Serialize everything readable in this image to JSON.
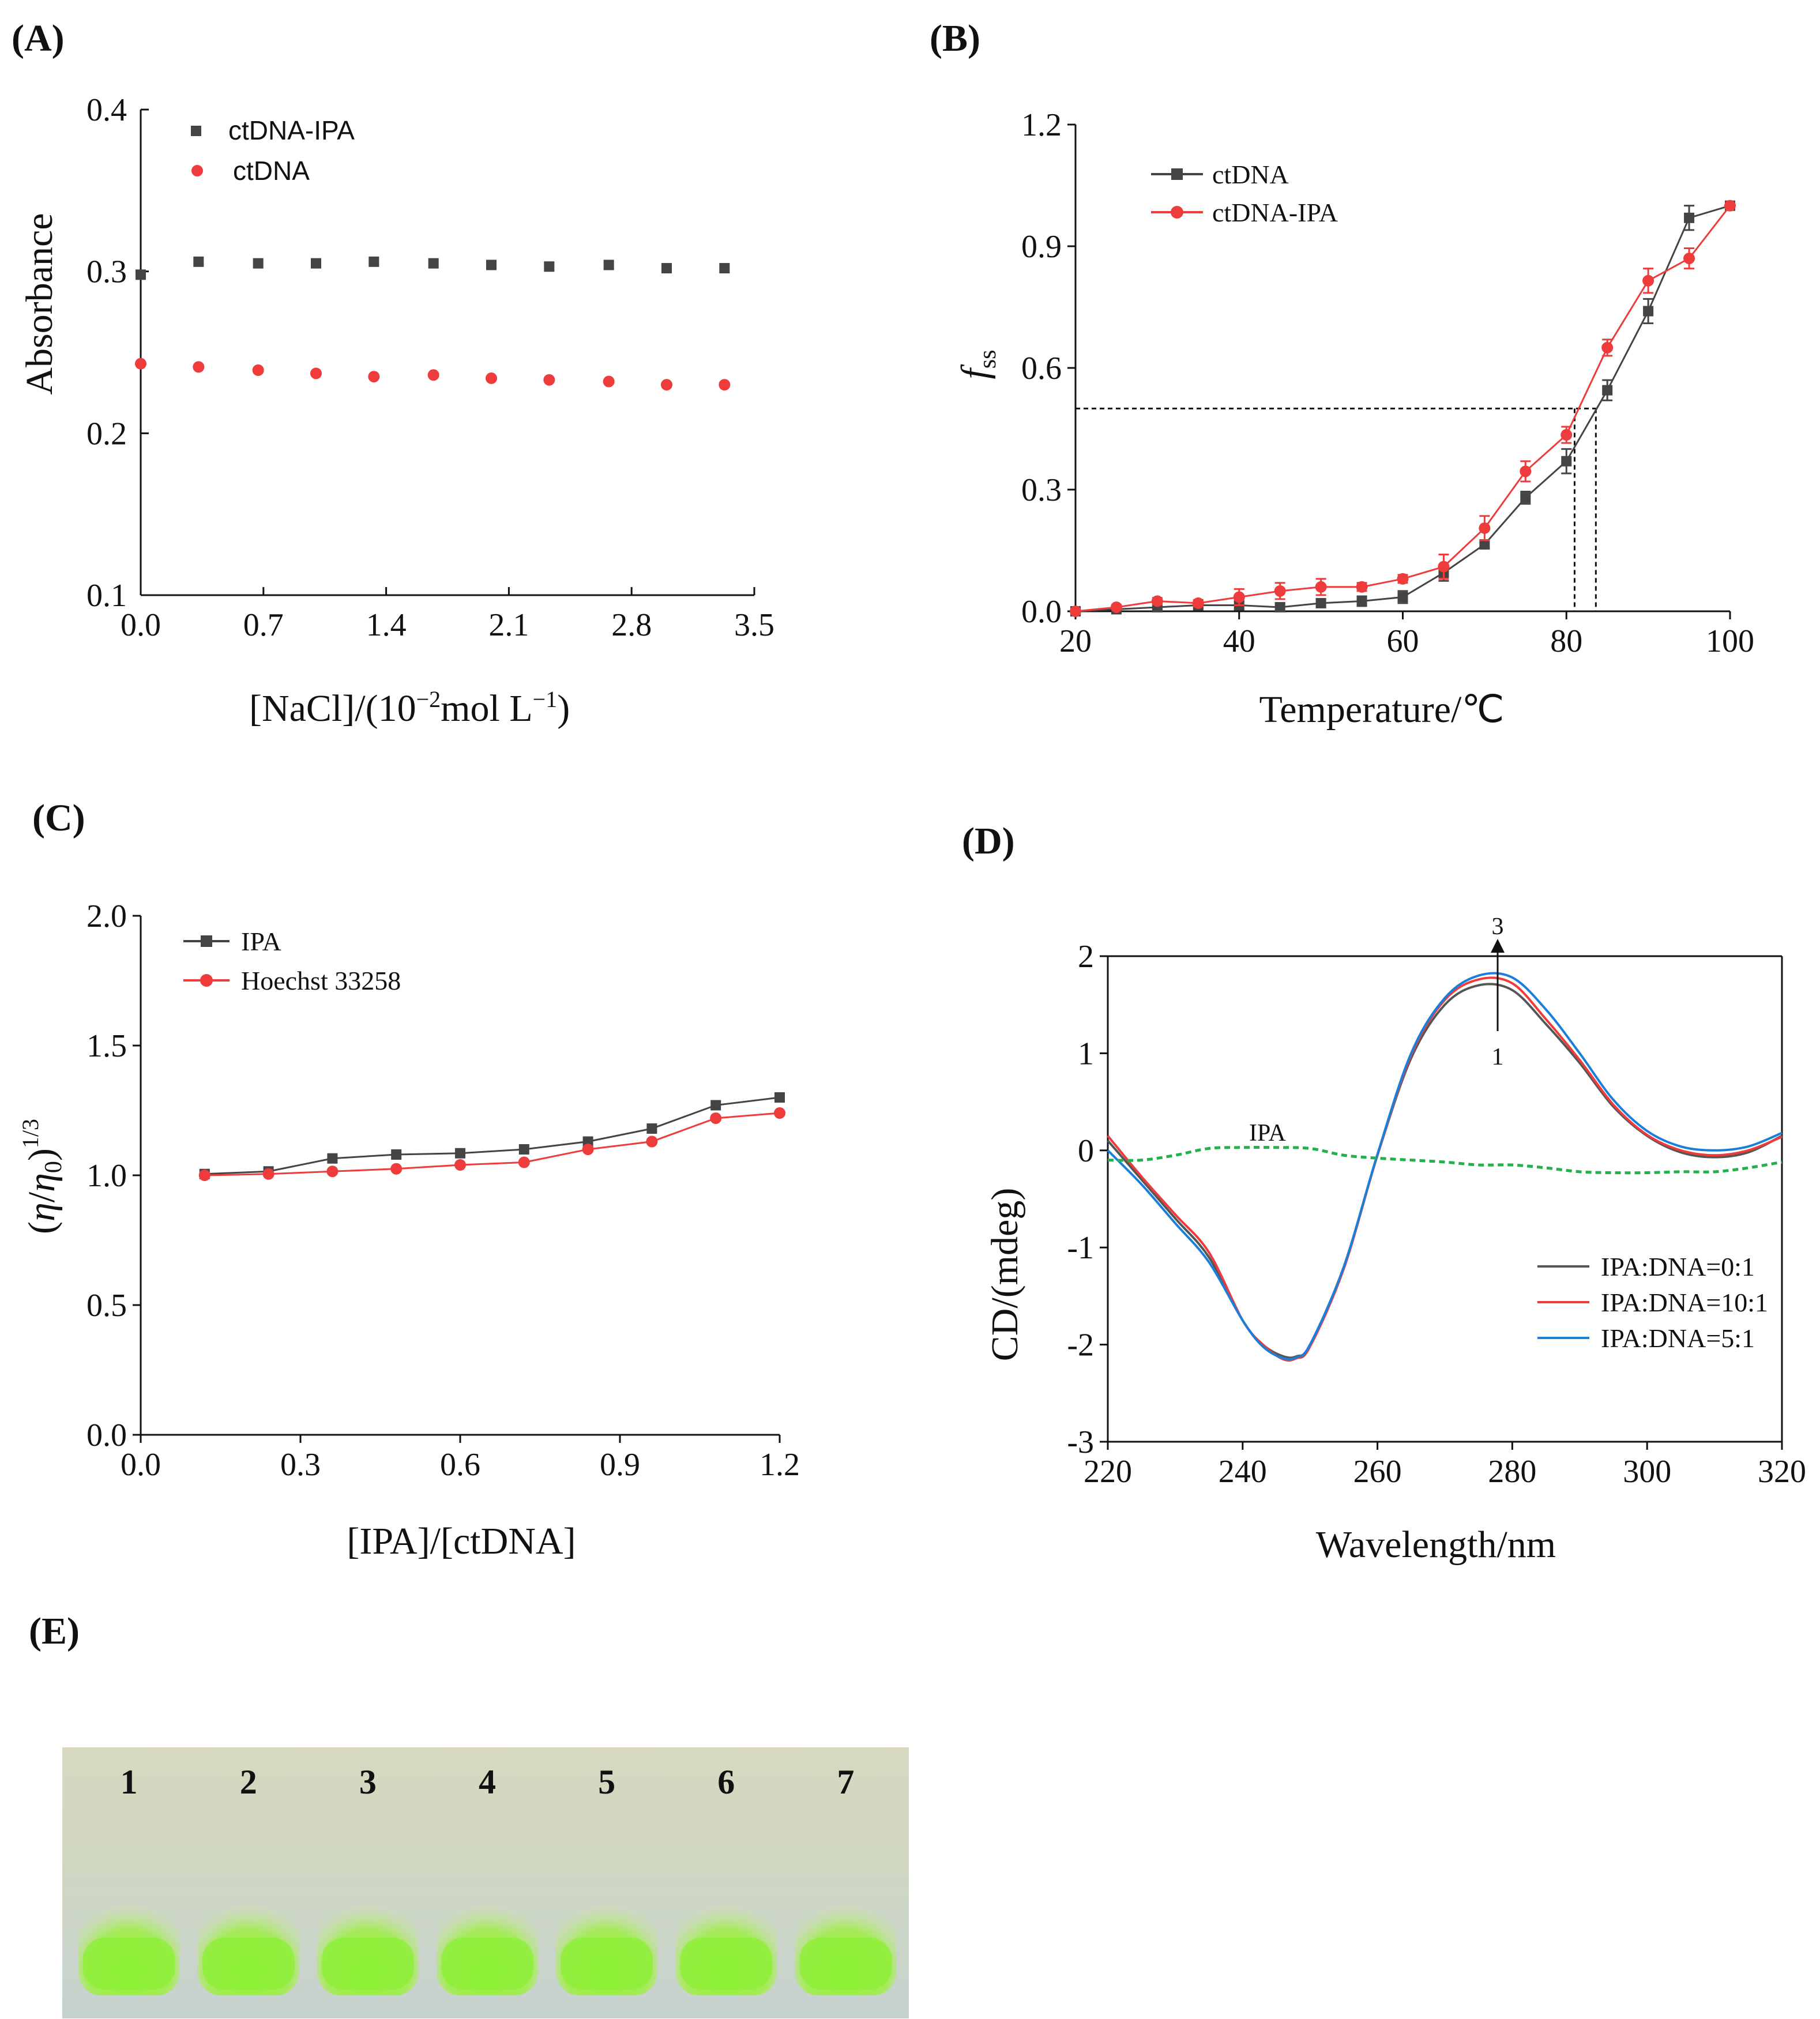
{
  "colors": {
    "black_series": "#444444",
    "red_series": "#ee3b3b",
    "blue_series": "#1a7fdb",
    "green_series": "#22b14c",
    "gel_band": "#86ee2c"
  },
  "chart_data": [
    {
      "id": "A",
      "panel_label": "(A)",
      "type": "scatter",
      "xlabel": "[NaCl]/(10",
      "xlabel_sup1": "−2",
      "xlabel_mid": "mol L",
      "xlabel_sup2": "−1",
      "xlabel_end": ")",
      "ylabel": "Absorbance",
      "xlim": [
        0,
        3.5
      ],
      "ylim": [
        0.1,
        0.4
      ],
      "xticks": [
        "0.0",
        "0.7",
        "1.4",
        "2.1",
        "2.8",
        "3.5"
      ],
      "yticks": [
        "0.1",
        "0.2",
        "0.3",
        "0.4"
      ],
      "legend_position": "top-left",
      "series": [
        {
          "name": "ctDNA-IPA",
          "marker": "square",
          "color": "#444444",
          "x": [
            0,
            0.33,
            0.67,
            1.0,
            1.33,
            1.67,
            2.0,
            2.33,
            2.67,
            3.0,
            3.33
          ],
          "y": [
            0.298,
            0.306,
            0.305,
            0.305,
            0.306,
            0.305,
            0.304,
            0.303,
            0.304,
            0.302,
            0.302
          ]
        },
        {
          "name": "ctDNA",
          "marker": "circle",
          "color": "#ee3b3b",
          "x": [
            0,
            0.33,
            0.67,
            1.0,
            1.33,
            1.67,
            2.0,
            2.33,
            2.67,
            3.0,
            3.33
          ],
          "y": [
            0.243,
            0.241,
            0.239,
            0.237,
            0.235,
            0.236,
            0.234,
            0.233,
            0.232,
            0.23,
            0.23
          ]
        }
      ]
    },
    {
      "id": "B",
      "panel_label": "(B)",
      "type": "line",
      "xlabel": "Temperature/℃",
      "ylabel": "f",
      "ylabel_sub": "ss",
      "xlim": [
        20,
        100
      ],
      "ylim": [
        0,
        1.2
      ],
      "xticks": [
        "20",
        "40",
        "60",
        "80",
        "100"
      ],
      "yticks": [
        "0.0",
        "0.3",
        "0.6",
        "0.9",
        "1.2"
      ],
      "legend_position": "top-left",
      "series": [
        {
          "name": "ctDNA",
          "marker": "square",
          "color": "#444444",
          "x": [
            20,
            25,
            30,
            35,
            40,
            45,
            50,
            55,
            60,
            65,
            70,
            75,
            80,
            85,
            90,
            95,
            100
          ],
          "y": [
            0.0,
            0.005,
            0.01,
            0.015,
            0.015,
            0.01,
            0.02,
            0.025,
            0.035,
            0.095,
            0.165,
            0.28,
            0.37,
            0.545,
            0.74,
            0.97,
            1.0
          ],
          "err": [
            0,
            0.005,
            0.005,
            0.005,
            0.01,
            0.01,
            0.01,
            0.012,
            0.015,
            0.02,
            0.01,
            0.015,
            0.03,
            0.025,
            0.03,
            0.03,
            0
          ]
        },
        {
          "name": "ctDNA-IPA",
          "marker": "circle",
          "color": "#ee3b3b",
          "x": [
            20,
            25,
            30,
            35,
            40,
            45,
            50,
            55,
            60,
            65,
            70,
            75,
            80,
            85,
            90,
            95,
            100
          ],
          "y": [
            0.0,
            0.01,
            0.025,
            0.02,
            0.035,
            0.05,
            0.06,
            0.06,
            0.08,
            0.11,
            0.205,
            0.345,
            0.435,
            0.65,
            0.815,
            0.87,
            1.0
          ],
          "err": [
            0,
            0.005,
            0.008,
            0.008,
            0.02,
            0.02,
            0.02,
            0.01,
            0.01,
            0.03,
            0.03,
            0.025,
            0.02,
            0.02,
            0.03,
            0.025,
            0
          ]
        }
      ],
      "guide_lines": {
        "y": 0.5,
        "x": [
          81,
          83.6
        ]
      }
    },
    {
      "id": "C",
      "panel_label": "(C)",
      "type": "line",
      "xlabel": "[IPA]/[ctDNA]",
      "ylabel_open": "(",
      "ylabel_eta": "η",
      "ylabel_slash": "/",
      "ylabel_eta0": "η",
      "ylabel_zero": "0",
      "ylabel_close": ")",
      "ylabel_sup": "1/3",
      "xlim": [
        0,
        1.2
      ],
      "ylim": [
        0,
        2.0
      ],
      "xticks": [
        "0.0",
        "0.3",
        "0.6",
        "0.9",
        "1.2"
      ],
      "yticks": [
        "0.0",
        "0.5",
        "1.0",
        "1.5",
        "2.0"
      ],
      "legend_position": "top-left",
      "series": [
        {
          "name": "IPA",
          "marker": "square",
          "color": "#444444",
          "x": [
            0.12,
            0.24,
            0.36,
            0.48,
            0.6,
            0.72,
            0.84,
            0.96,
            1.08,
            1.2
          ],
          "y": [
            1.005,
            1.015,
            1.065,
            1.08,
            1.085,
            1.1,
            1.13,
            1.18,
            1.27,
            1.3
          ]
        },
        {
          "name": "Hoechst 33258",
          "marker": "circle",
          "color": "#ee3b3b",
          "x": [
            0.12,
            0.24,
            0.36,
            0.48,
            0.6,
            0.72,
            0.84,
            0.96,
            1.08,
            1.2
          ],
          "y": [
            1.0,
            1.005,
            1.015,
            1.025,
            1.04,
            1.05,
            1.1,
            1.13,
            1.22,
            1.24
          ]
        }
      ]
    },
    {
      "id": "D",
      "panel_label": "(D)",
      "type": "line",
      "xlabel": "Wavelength/nm",
      "ylabel": "CD/(mdeg)",
      "xlim": [
        220,
        320
      ],
      "ylim": [
        -3,
        2
      ],
      "xticks": [
        "220",
        "240",
        "260",
        "280",
        "300",
        "320"
      ],
      "yticks": [
        "-3",
        "-2",
        "-1",
        "0",
        "1",
        "2"
      ],
      "legend_position": "bottom-right",
      "annotations": {
        "ipa_label": "IPA",
        "arrow_top": "3",
        "arrow_bottom": "1"
      },
      "series": [
        {
          "name": "IPA:DNA=0:1",
          "color": "#555555",
          "x": [
            220,
            225,
            230,
            235,
            240,
            243,
            246,
            248,
            250,
            255,
            260,
            265,
            270,
            275,
            280,
            285,
            290,
            295,
            300,
            305,
            310,
            315,
            320
          ],
          "y": [
            0.1,
            -0.3,
            -0.7,
            -1.1,
            -1.75,
            -2.0,
            -2.12,
            -2.12,
            -2.0,
            -1.2,
            -0.05,
            0.95,
            1.5,
            1.7,
            1.65,
            1.3,
            0.9,
            0.45,
            0.15,
            -0.02,
            -0.07,
            -0.02,
            0.15
          ]
        },
        {
          "name": "IPA:DNA=10:1",
          "color": "#ee3b3b",
          "x": [
            220,
            225,
            230,
            235,
            240,
            243,
            246,
            248,
            250,
            255,
            260,
            265,
            270,
            275,
            280,
            285,
            290,
            295,
            300,
            305,
            310,
            315,
            320
          ],
          "y": [
            0.15,
            -0.27,
            -0.66,
            -1.05,
            -1.75,
            -2.0,
            -2.15,
            -2.14,
            -2.02,
            -1.22,
            -0.05,
            0.98,
            1.55,
            1.76,
            1.72,
            1.35,
            0.93,
            0.47,
            0.16,
            0.0,
            -0.05,
            0.0,
            0.14
          ]
        },
        {
          "name": "IPA:DNA=5:1",
          "color": "#1a7fdb",
          "x": [
            220,
            225,
            230,
            235,
            240,
            243,
            246,
            248,
            250,
            255,
            260,
            265,
            270,
            275,
            280,
            285,
            290,
            295,
            300,
            305,
            310,
            315,
            320
          ],
          "y": [
            0.0,
            -0.35,
            -0.75,
            -1.15,
            -1.75,
            -2.02,
            -2.14,
            -2.13,
            -2.0,
            -1.2,
            -0.04,
            1.0,
            1.57,
            1.8,
            1.78,
            1.45,
            1.0,
            0.52,
            0.2,
            0.04,
            0.0,
            0.04,
            0.18
          ]
        },
        {
          "name": "IPA",
          "color": "#22b14c",
          "dashed": true,
          "in_legend": false,
          "x": [
            220,
            225,
            230,
            235,
            240,
            245,
            250,
            255,
            260,
            265,
            270,
            275,
            280,
            285,
            290,
            295,
            300,
            305,
            310,
            315,
            320
          ],
          "y": [
            -0.1,
            -0.1,
            -0.05,
            0.02,
            0.03,
            0.03,
            0.02,
            -0.05,
            -0.08,
            -0.1,
            -0.12,
            -0.15,
            -0.15,
            -0.18,
            -0.22,
            -0.23,
            -0.23,
            -0.22,
            -0.22,
            -0.18,
            -0.12
          ]
        }
      ]
    },
    {
      "id": "E",
      "panel_label": "(E)",
      "type": "gel",
      "lanes": [
        "1",
        "2",
        "3",
        "4",
        "5",
        "6",
        "7"
      ]
    }
  ]
}
